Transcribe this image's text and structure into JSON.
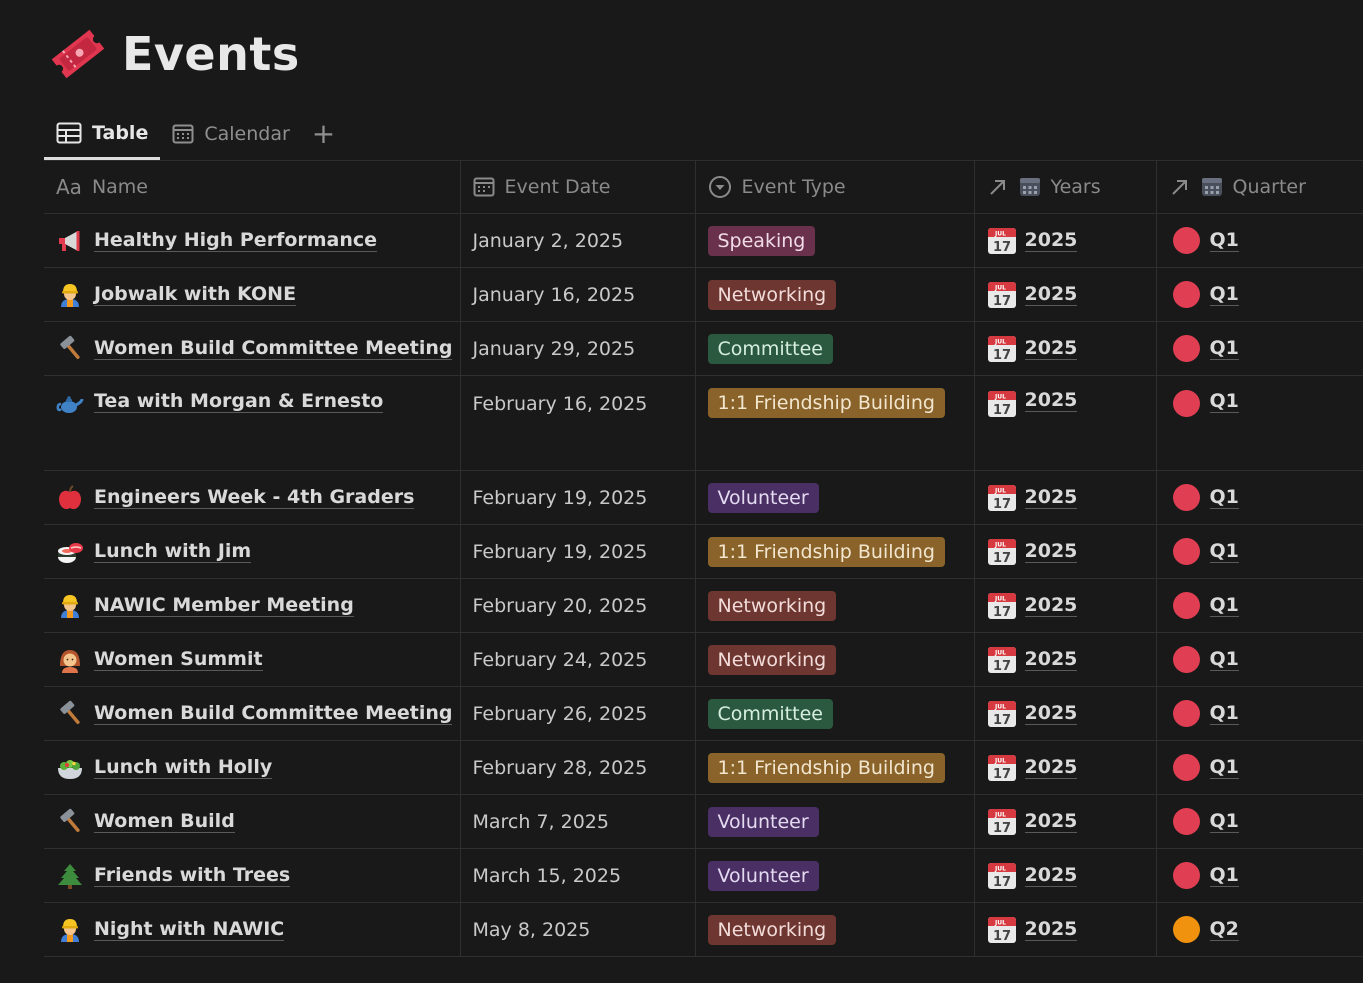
{
  "page": {
    "title": "Events",
    "icon": "ticket-icon"
  },
  "tabs": [
    {
      "label": "Table",
      "icon": "table-icon",
      "active": true
    },
    {
      "label": "Calendar",
      "icon": "calendar-icon",
      "active": false
    }
  ],
  "add_tab_label": "+",
  "columns": [
    {
      "label": "Name",
      "icon": "text-property-icon",
      "icon_text": "Aa"
    },
    {
      "label": "Event Date",
      "icon": "date-property-icon"
    },
    {
      "label": "Event Type",
      "icon": "select-property-icon"
    },
    {
      "label": "Years",
      "icon": "relation-calendar-icon"
    },
    {
      "label": "Quarter",
      "icon": "relation-calendar-icon"
    }
  ],
  "tag_colors": {
    "Speaking": {
      "bg": "#69314c",
      "fg": "#f0dbe6"
    },
    "Networking": {
      "bg": "#6e3630",
      "fg": "#f2dcda"
    },
    "Committee": {
      "bg": "#2b593f",
      "fg": "#d6eedf"
    },
    "1:1 Friendship Building": {
      "bg": "#89632a",
      "fg": "#f3e6cf"
    },
    "Volunteer": {
      "bg": "#492f64",
      "fg": "#e5dbf1"
    }
  },
  "quarter_colors": {
    "Q1": "#e03e52",
    "Q2": "#f0920e"
  },
  "rows": [
    {
      "name": "Healthy High Performance",
      "icon": "megaphone-icon",
      "date": "January 2, 2025",
      "type": "Speaking",
      "year": "2025",
      "quarter": "Q1"
    },
    {
      "name": "Jobwalk with KONE",
      "icon": "construction-worker-icon",
      "date": "January 16, 2025",
      "type": "Networking",
      "year": "2025",
      "quarter": "Q1"
    },
    {
      "name": "Women Build Committee Meeting",
      "icon": "hammer-icon",
      "date": "January 29, 2025",
      "type": "Committee",
      "year": "2025",
      "quarter": "Q1"
    },
    {
      "name": "Tea with Morgan & Ernesto",
      "icon": "teapot-icon",
      "date": "February 16, 2025",
      "type": "1:1 Friendship Building",
      "year": "2025",
      "quarter": "Q1",
      "tall": true
    },
    {
      "name": "Engineers Week - 4th Graders",
      "icon": "apple-icon",
      "date": "February 19, 2025",
      "type": "Volunteer",
      "year": "2025",
      "quarter": "Q1"
    },
    {
      "name": "Lunch with Jim",
      "icon": "sushi-icon",
      "date": "February 19, 2025",
      "type": "1:1 Friendship Building",
      "year": "2025",
      "quarter": "Q1"
    },
    {
      "name": "NAWIC Member Meeting",
      "icon": "construction-worker-icon",
      "date": "February 20, 2025",
      "type": "Networking",
      "year": "2025",
      "quarter": "Q1"
    },
    {
      "name": "Women Summit",
      "icon": "woman-icon",
      "date": "February 24, 2025",
      "type": "Networking",
      "year": "2025",
      "quarter": "Q1"
    },
    {
      "name": "Women Build Committee Meeting",
      "icon": "hammer-icon",
      "date": "February 26, 2025",
      "type": "Committee",
      "year": "2025",
      "quarter": "Q1"
    },
    {
      "name": "Lunch with Holly",
      "icon": "salad-icon",
      "date": "February 28, 2025",
      "type": "1:1 Friendship Building",
      "year": "2025",
      "quarter": "Q1"
    },
    {
      "name": "Women Build",
      "icon": "hammer-icon",
      "date": "March 7, 2025",
      "type": "Volunteer",
      "year": "2025",
      "quarter": "Q1"
    },
    {
      "name": "Friends with Trees",
      "icon": "evergreen-tree-icon",
      "date": "March 15, 2025",
      "type": "Volunteer",
      "year": "2025",
      "quarter": "Q1"
    },
    {
      "name": "Night with NAWIC",
      "icon": "construction-worker-icon",
      "date": "May 8, 2025",
      "type": "Networking",
      "year": "2025",
      "quarter": "Q2"
    }
  ]
}
